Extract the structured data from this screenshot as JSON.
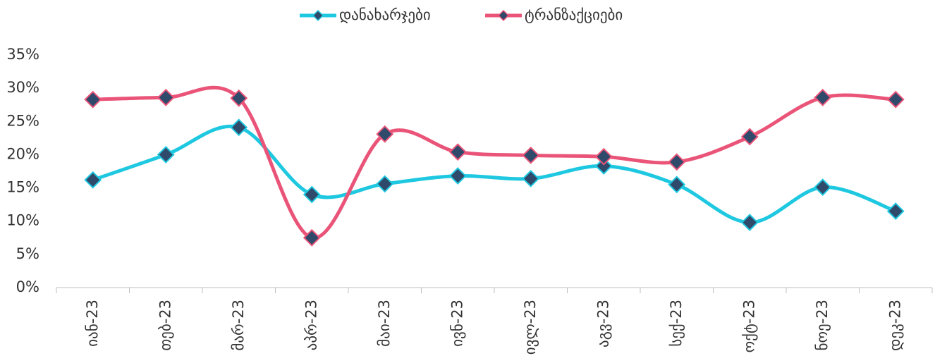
{
  "chart_data": {
    "type": "line",
    "categories": [
      "იან-23",
      "თებ-23",
      "მარ-23",
      "აპრ-23",
      "მაი-23",
      "ივნ-23",
      "ივლ-23",
      "აგვ-23",
      "სექ-23",
      "ოქტ-23",
      "ნოე-23",
      "დეკ-23"
    ],
    "series": [
      {
        "name": "დანახარჯები",
        "color": "#1ec8e0",
        "values": [
          16.2,
          20.0,
          24.1,
          14.0,
          15.6,
          16.8,
          16.4,
          18.3,
          15.5,
          9.8,
          15.1,
          11.5
        ]
      },
      {
        "name": "ტრანზაქციები",
        "color": "#ea5478",
        "values": [
          28.3,
          28.6,
          28.5,
          7.5,
          23.1,
          20.4,
          19.9,
          19.7,
          18.9,
          22.7,
          28.6,
          28.3
        ]
      }
    ],
    "marker_color": "#2f4a6b",
    "ylim": [
      0,
      35
    ],
    "yticks": [
      {
        "value": 0,
        "label": "0%"
      },
      {
        "value": 5,
        "label": "5%"
      },
      {
        "value": 10,
        "label": "10%"
      },
      {
        "value": 15,
        "label": "15%"
      },
      {
        "value": 20,
        "label": "20%"
      },
      {
        "value": 25,
        "label": "25%"
      },
      {
        "value": 30,
        "label": "30%"
      },
      {
        "value": 35,
        "label": "35%"
      }
    ],
    "legend": "top",
    "grid": false
  }
}
